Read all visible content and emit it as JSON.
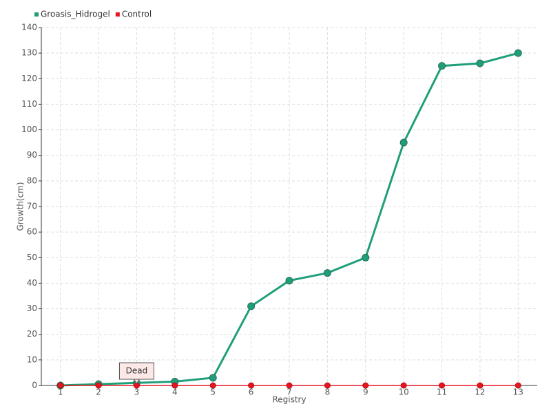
{
  "chart_data": {
    "type": "line",
    "x_label": "Registry",
    "y_label": "Growth(cm)",
    "categories": [
      "1",
      "2",
      "3",
      "4",
      "5",
      "6",
      "7",
      "8",
      "9",
      "10",
      "11",
      "12",
      "13"
    ],
    "series": [
      {
        "name": "Groasis_Hidrogel",
        "color": "#1f9e7a",
        "values": [
          0,
          0.5,
          1,
          1.5,
          3,
          31,
          41,
          44,
          50,
          95,
          125,
          126,
          130
        ]
      },
      {
        "name": "Control",
        "color": "#e8141e",
        "values": [
          0,
          0,
          0,
          0,
          0,
          0,
          0,
          0,
          0,
          0,
          0,
          0,
          0
        ]
      }
    ],
    "annotations": [
      {
        "text": "Dead",
        "x": "3"
      }
    ],
    "ylim": [
      0,
      140
    ],
    "yticks": [
      0,
      10,
      20,
      30,
      40,
      50,
      60,
      70,
      80,
      90,
      100,
      110,
      120,
      130,
      140
    ],
    "grid": true,
    "legend": "top-left"
  }
}
